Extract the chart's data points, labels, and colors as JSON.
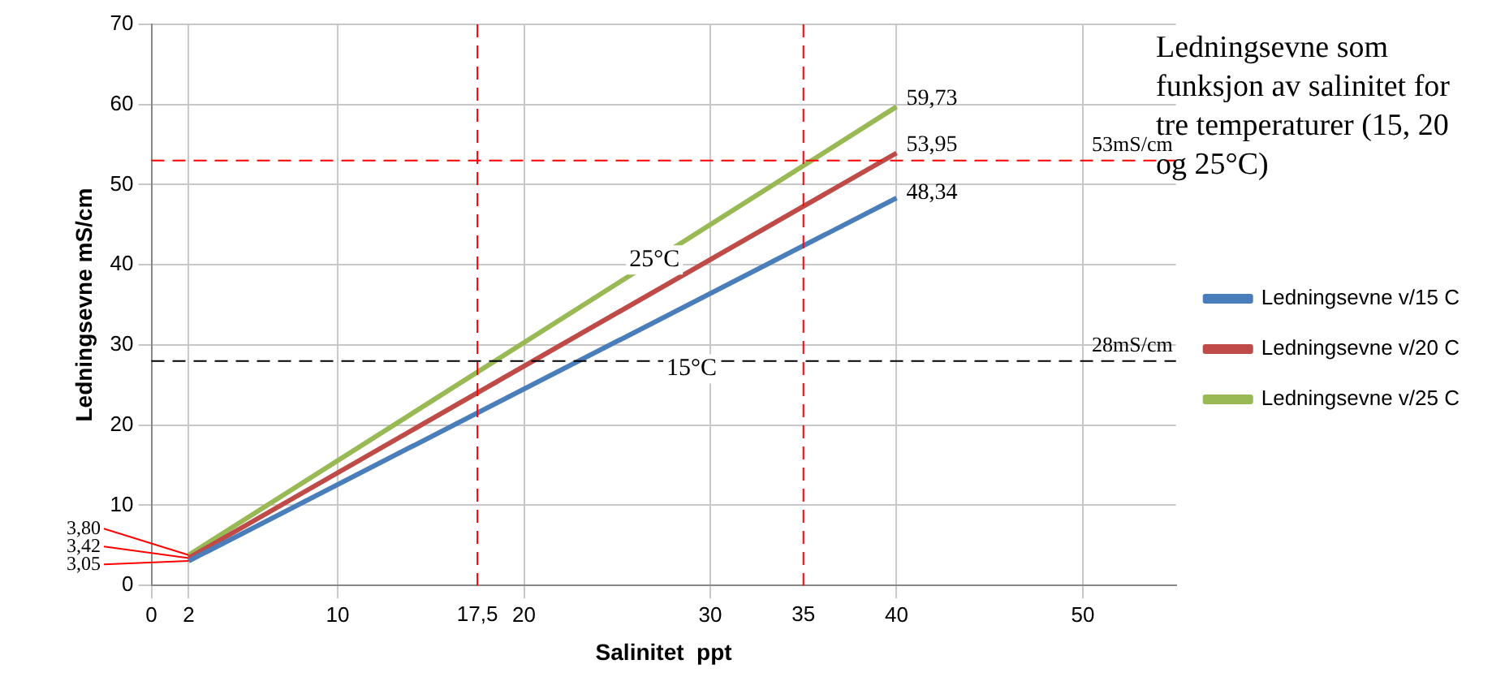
{
  "chart_data": {
    "type": "line",
    "title": "Ledningsevne som funksjon av salinitet for tre temperaturer (15, 20 og 25°C)",
    "xlabel": "Salinitet  ppt",
    "ylabel": "Ledningsevne mS/cm",
    "x": [
      2,
      40
    ],
    "xlim": [
      0,
      55
    ],
    "xticks": [
      0,
      2,
      10,
      20,
      30,
      40,
      50
    ],
    "ylim": [
      0,
      70
    ],
    "yticks": [
      0,
      10,
      20,
      30,
      40,
      50,
      60,
      70
    ],
    "grid": true,
    "legend": "right",
    "marker": "none",
    "line_style": "solid",
    "series": [
      {
        "name": "Ledningsevne v/15 C",
        "color": "#4a7ebb",
        "values": [
          3.05,
          48.34
        ],
        "value_labels": [
          "3,05",
          "48,34"
        ]
      },
      {
        "name": "Ledningsevne v/20 C",
        "color": "#be4b48",
        "values": [
          3.42,
          53.95
        ],
        "value_labels": [
          "3,42",
          "53,95"
        ]
      },
      {
        "name": "Ledningsevne v/25 C",
        "color": "#98b954",
        "values": [
          3.8,
          59.73
        ],
        "value_labels": [
          "3,80",
          "59,73"
        ]
      }
    ],
    "ref_lines": [
      {
        "axis": "y",
        "value": 53,
        "label": "53mS/cm",
        "color": "#ff0000",
        "line_style": "dashed"
      },
      {
        "axis": "y",
        "value": 28,
        "label": "28mS/cm",
        "color": "#000000",
        "line_style": "dashed"
      },
      {
        "axis": "x",
        "value": 17.5,
        "label": "17,5",
        "color": "#ff0000",
        "line_style": "dashed"
      },
      {
        "axis": "x",
        "value": 35,
        "label": "35",
        "color": "#ff0000",
        "line_style": "dashed"
      }
    ],
    "annotations": [
      {
        "text": "25°C",
        "x": 27,
        "y": 40.6
      },
      {
        "text": "15°C",
        "x": 29,
        "y": 27
      }
    ]
  }
}
